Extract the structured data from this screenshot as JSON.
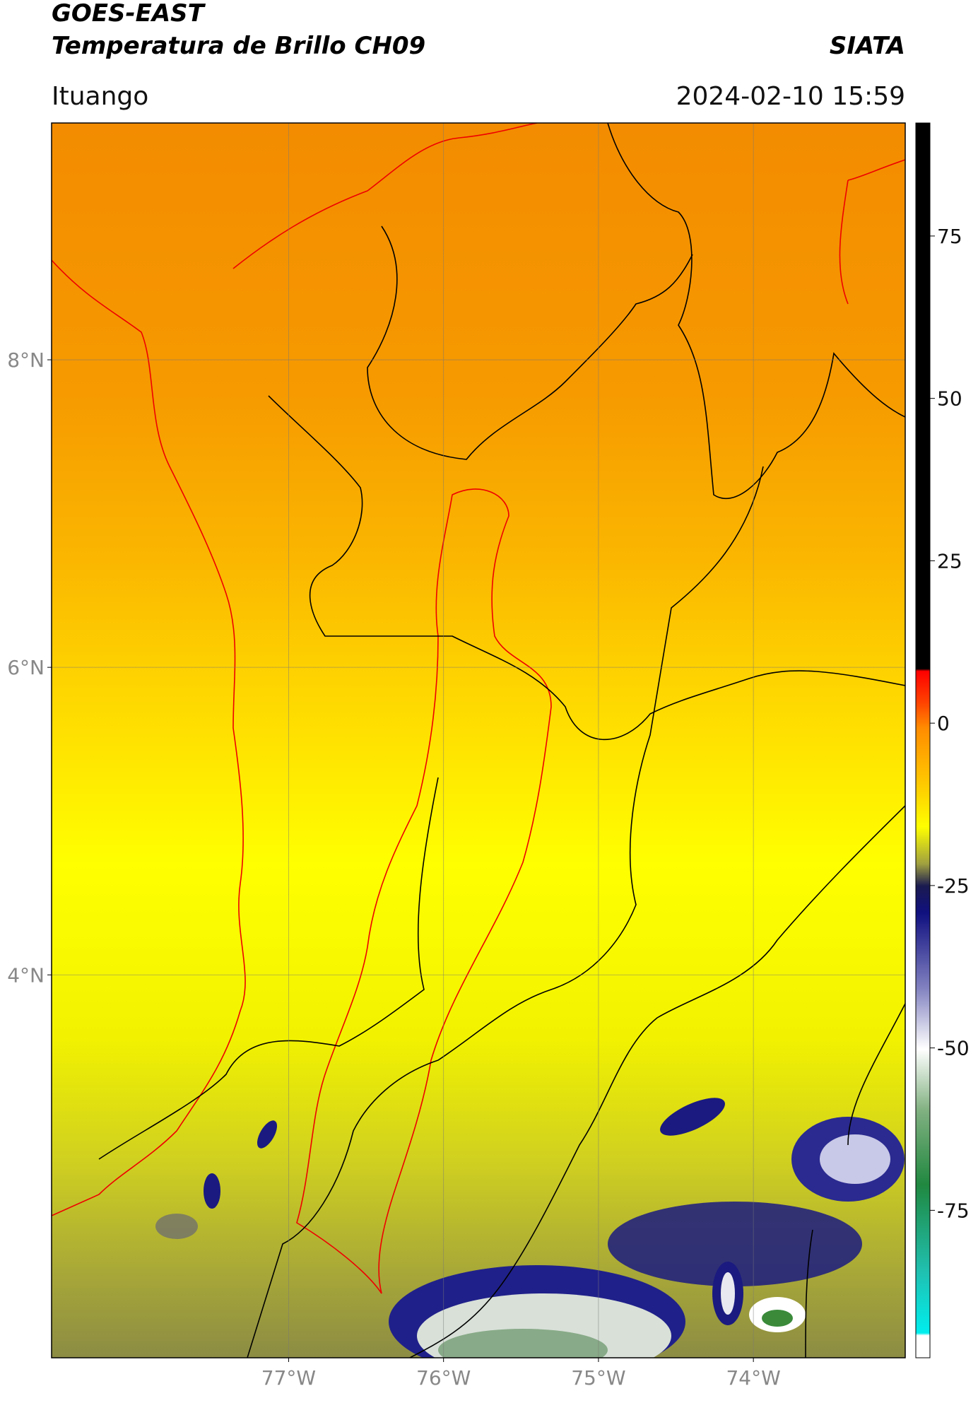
{
  "header": {
    "title": "GOES-EAST",
    "subtitle": "Temperatura de Brillo CH09",
    "brand": "SIATA",
    "location": "Ituango",
    "datetime": "2024-02-10 15:59"
  },
  "map": {
    "xlim": [
      -78.53,
      -73.02
    ],
    "ylim": [
      1.51,
      9.54
    ],
    "xticks": [
      {
        "value": -77,
        "label": "77°W"
      },
      {
        "value": -76,
        "label": "76°W"
      },
      {
        "value": -75,
        "label": "75°W"
      },
      {
        "value": -74,
        "label": "74°W"
      }
    ],
    "yticks": [
      {
        "value": 4,
        "label": "4°N"
      },
      {
        "value": 6,
        "label": "6°N"
      },
      {
        "value": 8,
        "label": "8°N"
      }
    ],
    "grid": true
  },
  "colorbar": {
    "lim": [
      -97.7,
      92.4
    ],
    "ticks": [
      -75,
      -50,
      -25,
      0,
      25,
      50,
      75
    ]
  }
}
